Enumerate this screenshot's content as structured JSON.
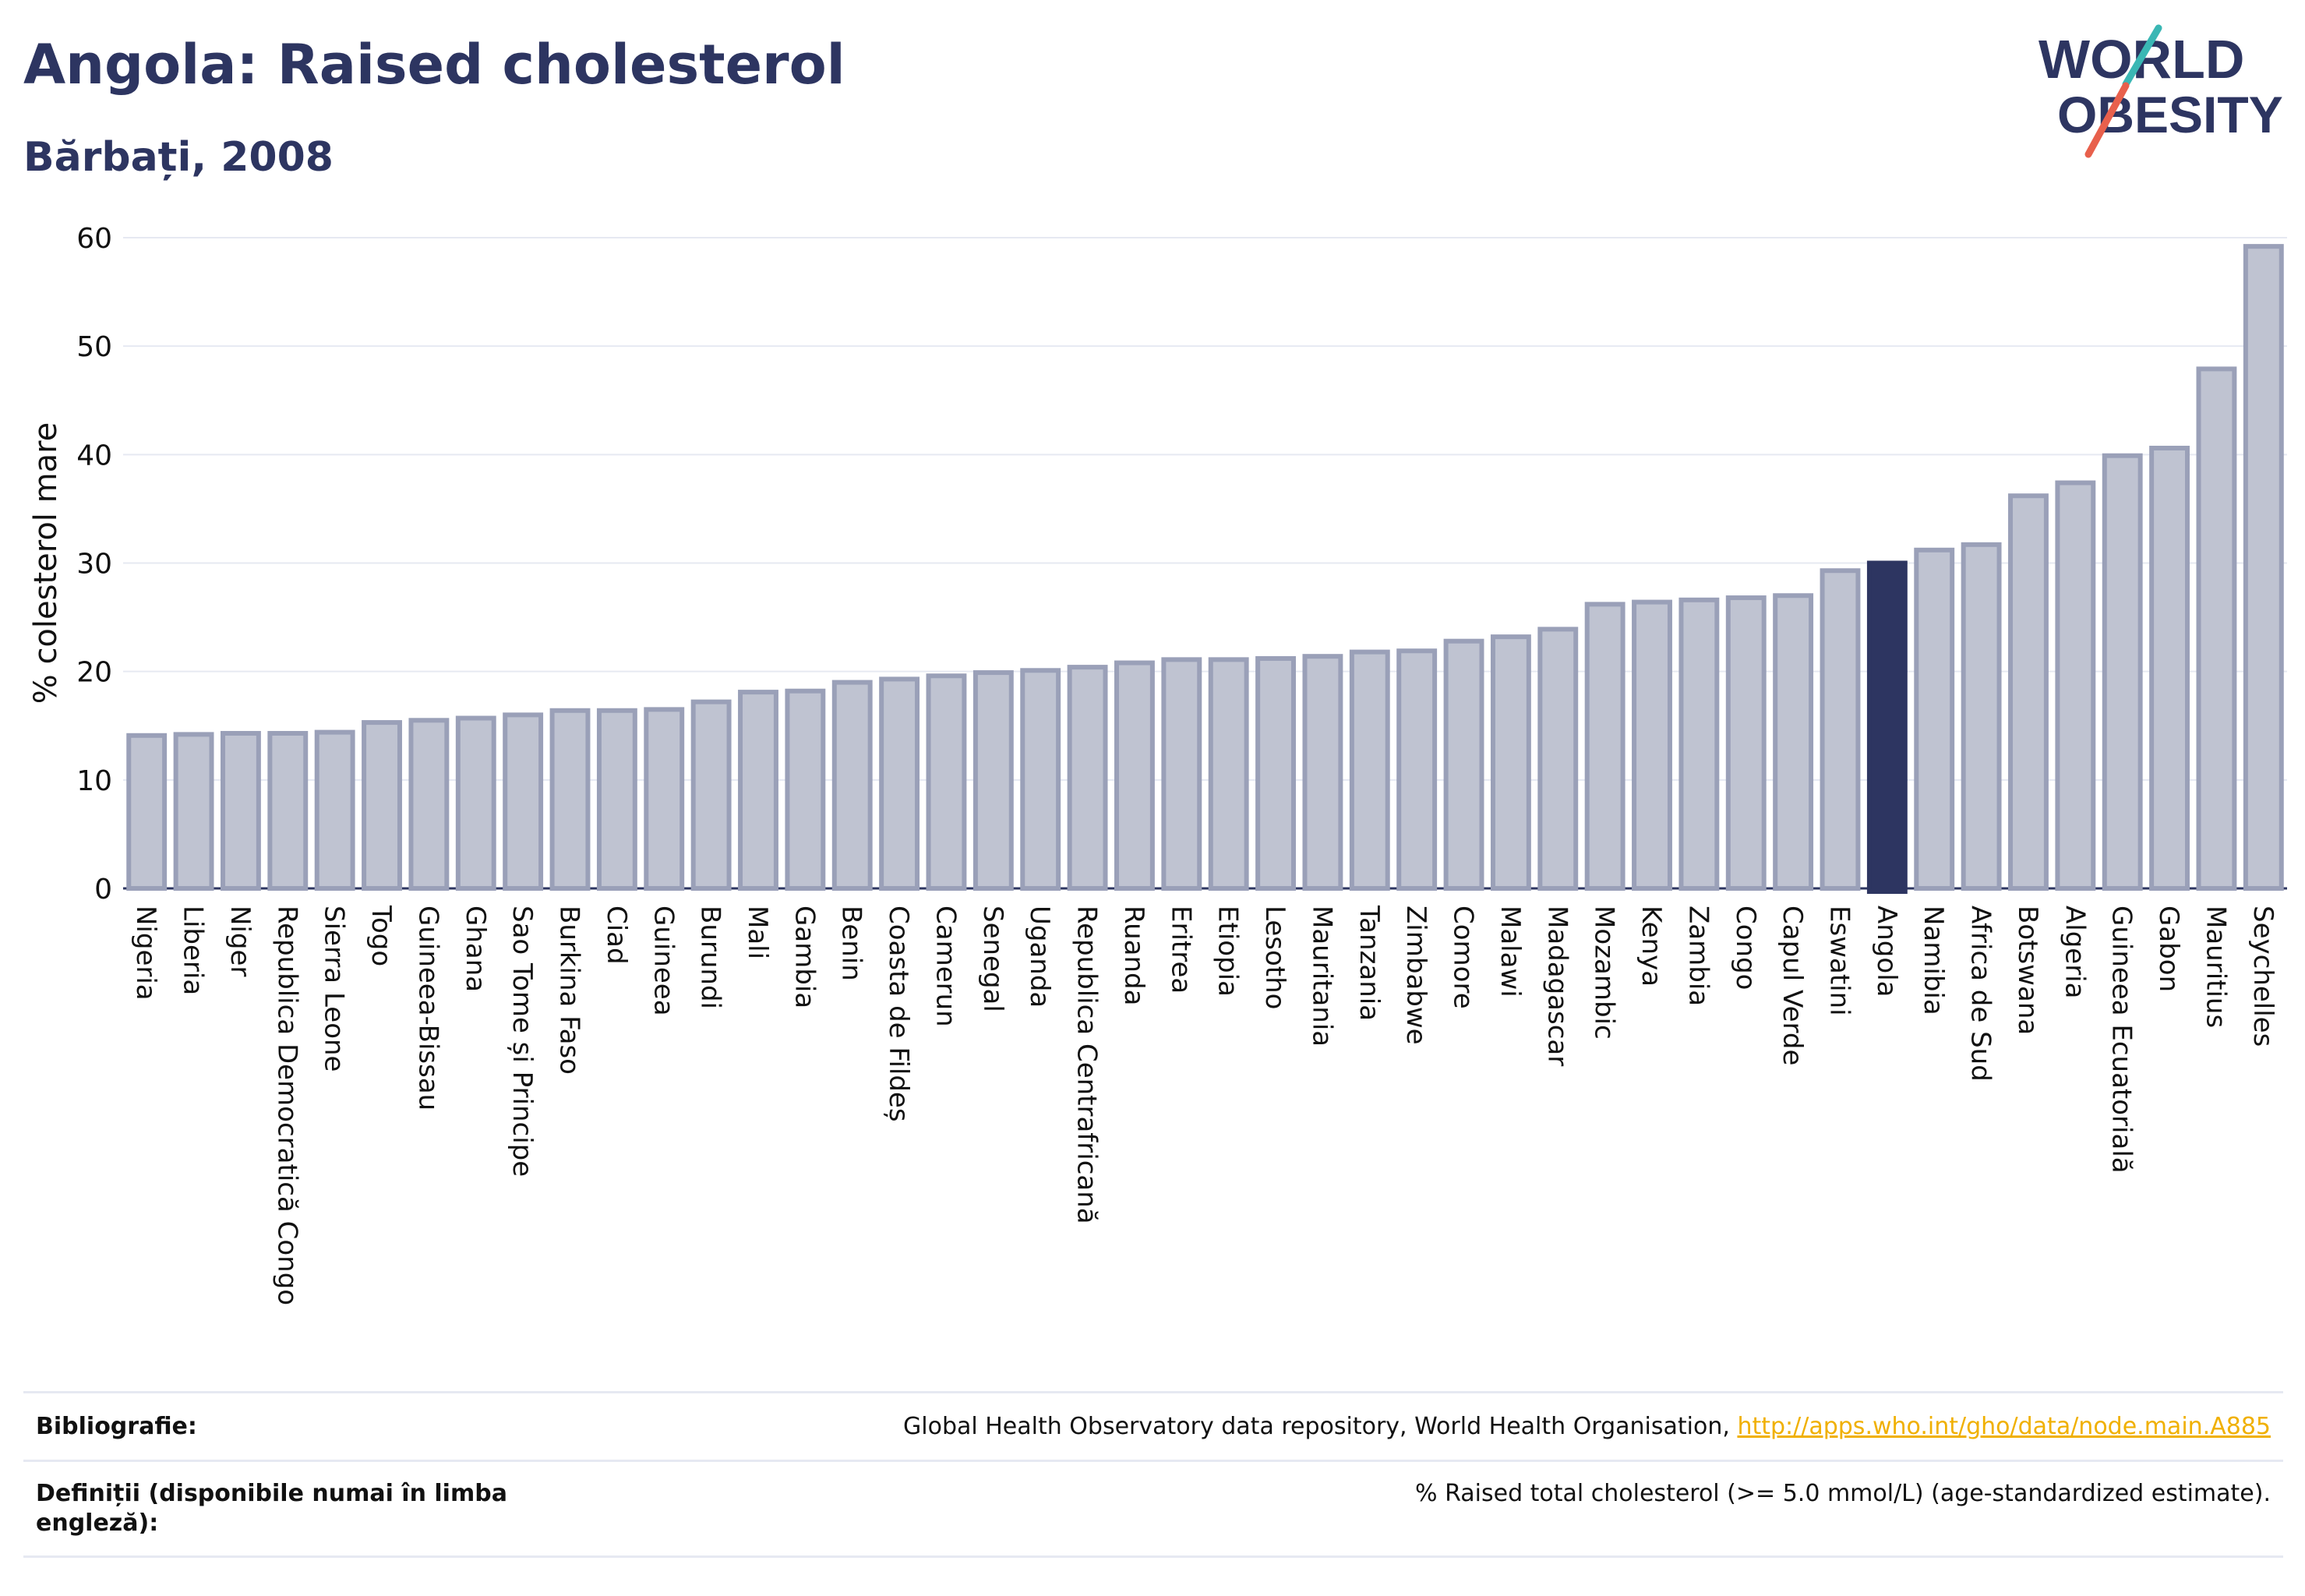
{
  "header": {
    "title": "Angola: Raised cholesterol",
    "subtitle": "Bărbați, 2008"
  },
  "logo": {
    "line1": "WORLD",
    "line2": "OBESITY",
    "accent_colors": [
      "#e8604c",
      "#3ab7b4"
    ],
    "text_color": "#2d3561"
  },
  "colors": {
    "bar_fill": "#bfc3d1",
    "bar_stroke": "#9aa0b8",
    "highlight": "#2d3561",
    "grid": "#e6e9f2",
    "axis_text": "#111111"
  },
  "chart_data": {
    "type": "bar",
    "title": "Angola: Raised cholesterol",
    "subtitle": "Bărbați, 2008",
    "ylabel": "% colesterol mare",
    "xlabel": "",
    "ylim": [
      0,
      60
    ],
    "yticks": [
      0,
      10,
      20,
      30,
      40,
      50,
      60
    ],
    "grid": true,
    "highlight": "Angola",
    "categories": [
      "Nigeria",
      "Liberia",
      "Niger",
      "Republica Democratică Congo",
      "Sierra Leone",
      "Togo",
      "Guineea-Bissau",
      "Ghana",
      "Sao Tome și Principe",
      "Burkina Faso",
      "Ciad",
      "Guineea",
      "Burundi",
      "Mali",
      "Gambia",
      "Benin",
      "Coasta de Fildeș",
      "Camerun",
      "Senegal",
      "Uganda",
      "Republica Centrafricană",
      "Ruanda",
      "Eritrea",
      "Etiopia",
      "Lesotho",
      "Mauritania",
      "Tanzania",
      "Zimbabwe",
      "Comore",
      "Malawi",
      "Madagascar",
      "Mozambic",
      "Kenya",
      "Zambia",
      "Congo",
      "Capul Verde",
      "Eswatini",
      "Angola",
      "Namibia",
      "Africa de Sud",
      "Botswana",
      "Algeria",
      "Guineea Ecuatorială",
      "Gabon",
      "Mauritius",
      "Seychelles"
    ],
    "values": [
      14.1,
      14.2,
      14.3,
      14.3,
      14.4,
      15.3,
      15.5,
      15.7,
      16.0,
      16.4,
      16.4,
      16.5,
      17.2,
      18.1,
      18.2,
      19.0,
      19.3,
      19.6,
      19.9,
      20.1,
      20.4,
      20.8,
      21.1,
      21.1,
      21.2,
      21.4,
      21.8,
      21.9,
      22.8,
      23.2,
      23.9,
      26.2,
      26.4,
      26.6,
      26.8,
      27.0,
      29.3,
      30.0,
      31.2,
      31.7,
      36.2,
      37.4,
      39.9,
      40.6,
      47.9,
      59.2
    ]
  },
  "footer": {
    "bibliography_label": "Bibliografie:",
    "bibliography_text": "Global Health Observatory data repository, World Health Organisation, ",
    "bibliography_link": "http://apps.who.int/gho/data/node.main.A885",
    "definitions_label": "Definiții (disponibile numai în limba engleză):",
    "definitions_text": "% Raised total cholesterol (>= 5.0 mmol/L) (age-standardized estimate)."
  }
}
